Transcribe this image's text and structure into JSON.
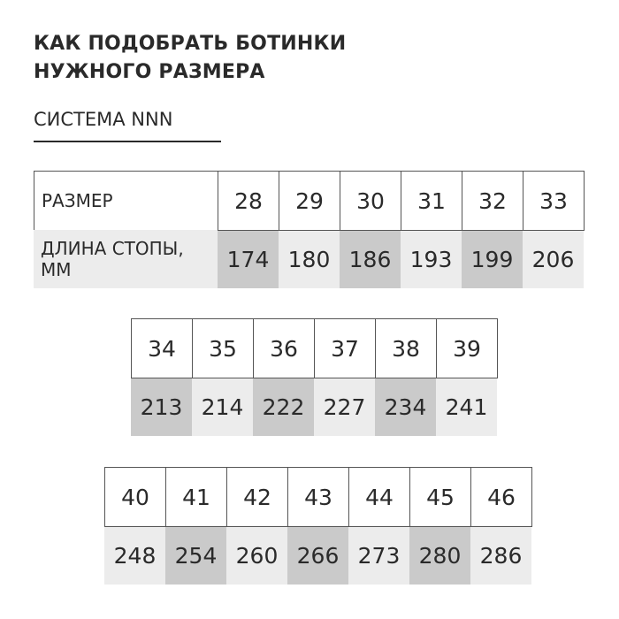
{
  "title_line1": "КАК ПОДОБРАТЬ БОТИНКИ",
  "title_line2": "НУЖНОГО РАЗМЕРА",
  "subtitle": "СИСТЕМА NNN",
  "row_labels": {
    "size": "РАЗМЕР",
    "length": "ДЛИНА СТОПЫ, ММ"
  },
  "colors": {
    "shade_light": "#ececec",
    "shade_dark": "#cacaca",
    "border": "#555555",
    "text": "#2a2a2a"
  },
  "tables": [
    {
      "sizes": [
        "28",
        "29",
        "30",
        "31",
        "32",
        "33"
      ],
      "lengths": [
        "174",
        "180",
        "186",
        "193",
        "199",
        "206"
      ],
      "dark": [
        true,
        false,
        true,
        false,
        true,
        false
      ]
    },
    {
      "sizes": [
        "34",
        "35",
        "36",
        "37",
        "38",
        "39"
      ],
      "lengths": [
        "213",
        "214",
        "222",
        "227",
        "234",
        "241"
      ],
      "dark": [
        true,
        false,
        true,
        false,
        true,
        false
      ]
    },
    {
      "sizes": [
        "40",
        "41",
        "42",
        "43",
        "44",
        "45",
        "46"
      ],
      "lengths": [
        "248",
        "254",
        "260",
        "266",
        "273",
        "280",
        "286"
      ],
      "dark": [
        false,
        true,
        false,
        true,
        false,
        true,
        false
      ]
    }
  ]
}
